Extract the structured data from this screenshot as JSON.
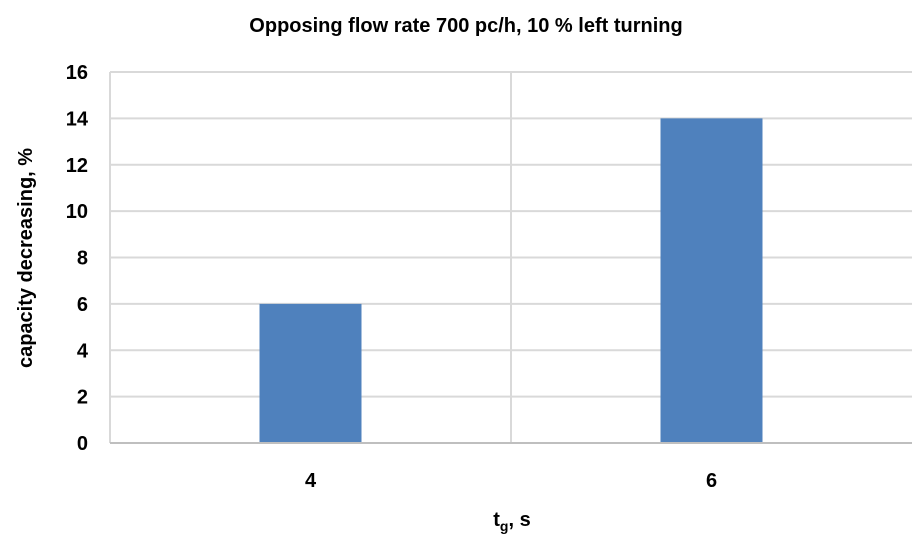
{
  "chart_data": {
    "type": "bar",
    "title": "Opposing flow rate 700 pc/h, 10 % left turning",
    "xlabel": {
      "main": "t",
      "subscript": "g",
      "suffix": ", s"
    },
    "ylabel": "capacity decreasing, %",
    "categories": [
      "4",
      "6"
    ],
    "series": [
      {
        "values": [
          6,
          14
        ]
      }
    ],
    "ylim": [
      0,
      16
    ],
    "yticks": [
      0,
      2,
      4,
      6,
      8,
      10,
      12,
      14,
      16
    ],
    "grid": true,
    "legend": "none",
    "colors": {
      "bar": "#4F81BD",
      "grid": "#D9D9D9",
      "axis": "#BFBFBF"
    }
  }
}
